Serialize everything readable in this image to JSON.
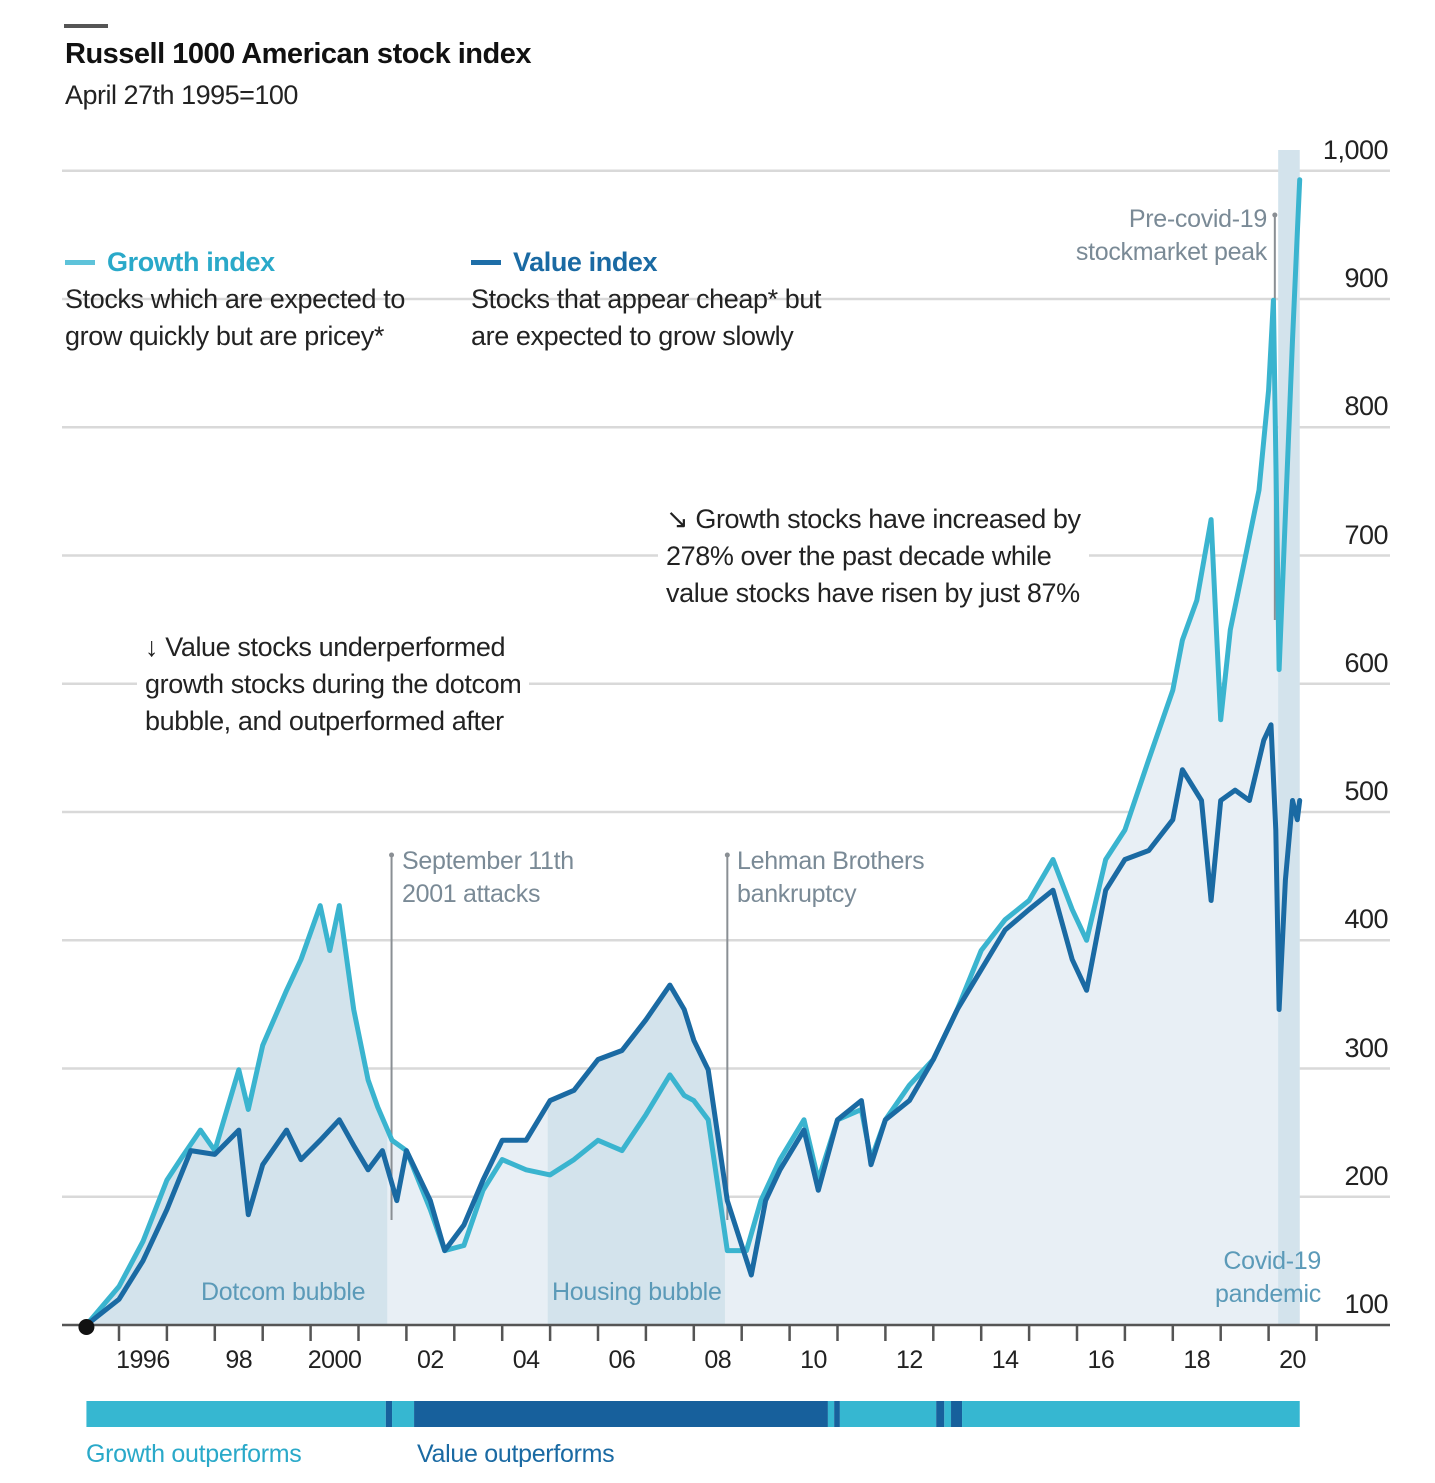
{
  "header": {
    "title": "Russell 1000 American stock index",
    "subtitle": "April 27th 1995=100"
  },
  "legend": {
    "growth": {
      "label": "Growth index",
      "desc_line1": "Stocks which are expected to",
      "desc_line2": "grow quickly but are pricey*"
    },
    "value": {
      "label": "Value index",
      "desc_line1": "Stocks that appear cheap* but",
      "desc_line2": "are expected to grow slowly"
    }
  },
  "annotations": {
    "decade": {
      "arrow": "↘",
      "line1": "Growth stocks have increased by",
      "line2": "278% over the past decade while",
      "line3": "value stocks have risen by just 87%"
    },
    "dotcom": {
      "arrow": "↓",
      "line1": "Value stocks underperformed",
      "line2": "growth stocks during the dotcom",
      "line3": "bubble, and outperformed after"
    },
    "events": [
      {
        "line1": "September 11th",
        "line2": "2001 attacks",
        "x": 2001.69
      },
      {
        "line1": "Lehman Brothers",
        "line2": "bankruptcy",
        "x": 2008.7
      },
      {
        "line1": "Pre-covid-19",
        "line2": "stockmarket peak",
        "x": 2020.13
      }
    ],
    "shaded_periods": [
      {
        "label": "Dotcom bubble",
        "start": 1995.32,
        "end": 2001.6
      },
      {
        "label": "Housing bubble",
        "start": 2004.95,
        "end": 2008.65
      },
      {
        "label_line1": "Covid-19",
        "label_line2": "pandemic",
        "start": 2020.2,
        "end": 2020.65
      }
    ]
  },
  "bottom_bar": {
    "growth_label": "Growth outperforms",
    "value_label": "Value outperforms",
    "segments": [
      {
        "winner": "growth",
        "start": 1995.32,
        "end": 2001.57
      },
      {
        "winner": "value",
        "start": 2001.57,
        "end": 2001.7
      },
      {
        "winner": "growth",
        "start": 2001.7,
        "end": 2002.16
      },
      {
        "winner": "value",
        "start": 2002.16,
        "end": 2010.8
      },
      {
        "winner": "growth",
        "start": 2010.8,
        "end": 2010.93
      },
      {
        "winner": "value",
        "start": 2010.93,
        "end": 2011.05
      },
      {
        "winner": "growth",
        "start": 2011.05,
        "end": 2013.06
      },
      {
        "winner": "value",
        "start": 2013.06,
        "end": 2013.23
      },
      {
        "winner": "growth",
        "start": 2013.23,
        "end": 2013.37
      },
      {
        "winner": "value",
        "start": 2013.37,
        "end": 2013.6
      },
      {
        "winner": "growth",
        "start": 2013.6,
        "end": 2020.65
      }
    ]
  },
  "colors": {
    "growth": "#3ab4cf",
    "value": "#1a6aa3",
    "shade": "#d3e3ec",
    "area": "#e8eff5",
    "grid": "#d9d9d9",
    "event_line": "#8a8f94",
    "bar_growth": "#36b7d1",
    "bar_value": "#17609c"
  },
  "chart_data": {
    "type": "line",
    "title": "Russell 1000 American stock index",
    "subtitle": "April 27th 1995=100",
    "xlabel": "",
    "ylabel": "",
    "xlim": [
      1995.32,
      2020.65
    ],
    "ylim": [
      100,
      1000
    ],
    "yticks": [
      100,
      200,
      300,
      400,
      500,
      600,
      700,
      800,
      900,
      1000
    ],
    "ytick_labels": [
      "100",
      "200",
      "300",
      "400",
      "500",
      "600",
      "700",
      "800",
      "900",
      "1,000"
    ],
    "xticks": [
      1996,
      1998,
      2000,
      2002,
      2004,
      2006,
      2008,
      2010,
      2012,
      2014,
      2016,
      2018,
      2020
    ],
    "xtick_labels": [
      "1996",
      "98",
      "2000",
      "02",
      "04",
      "06",
      "08",
      "10",
      "12",
      "14",
      "16",
      "18",
      "20"
    ],
    "grid": true,
    "legend_position": "top-left",
    "series": [
      {
        "name": "Growth index",
        "x": [
          1995.32,
          1996.0,
          1996.5,
          1997.0,
          1997.3,
          1997.7,
          1998.0,
          1998.5,
          1998.7,
          1999.0,
          1999.5,
          1999.8,
          2000.2,
          2000.4,
          2000.6,
          2000.9,
          2001.2,
          2001.4,
          2001.7,
          2002.0,
          2002.5,
          2002.8,
          2003.2,
          2003.6,
          2004.0,
          2004.5,
          2005.0,
          2005.5,
          2006.0,
          2006.5,
          2007.0,
          2007.5,
          2007.8,
          2008.0,
          2008.3,
          2008.7,
          2009.1,
          2009.4,
          2009.8,
          2010.3,
          2010.6,
          2011.0,
          2011.5,
          2011.7,
          2012.0,
          2012.5,
          2013.0,
          2013.5,
          2014.0,
          2014.5,
          2015.0,
          2015.5,
          2015.9,
          2016.2,
          2016.6,
          2017.0,
          2017.5,
          2018.0,
          2018.2,
          2018.5,
          2018.8,
          2019.0,
          2019.2,
          2019.5,
          2019.8,
          2020.0,
          2020.1,
          2020.22,
          2020.5,
          2020.65
        ],
        "values": [
          100,
          130,
          165,
          213,
          230,
          252,
          236,
          299,
          268,
          318,
          361,
          385,
          427,
          392,
          427,
          346,
          291,
          270,
          244,
          236,
          190,
          158,
          162,
          205,
          229,
          221,
          217,
          229,
          244,
          236,
          264,
          295,
          279,
          275,
          260,
          158,
          158,
          197,
          229,
          260,
          213,
          260,
          268,
          229,
          260,
          287,
          307,
          346,
          392,
          416,
          431,
          463,
          424,
          400,
          463,
          486,
          541,
          595,
          634,
          665,
          728,
          572,
          642,
          696,
          751,
          829,
          899,
          611,
          868,
          993
        ]
      },
      {
        "name": "Value index",
        "x": [
          1995.32,
          1996.0,
          1996.5,
          1997.0,
          1997.5,
          1998.0,
          1998.5,
          1998.7,
          1999.0,
          1999.5,
          1999.8,
          2000.2,
          2000.6,
          2000.9,
          2001.2,
          2001.5,
          2001.8,
          2002.0,
          2002.5,
          2002.8,
          2003.2,
          2003.6,
          2004.0,
          2004.5,
          2005.0,
          2005.5,
          2006.0,
          2006.5,
          2007.0,
          2007.5,
          2007.8,
          2008.0,
          2008.3,
          2008.7,
          2009.2,
          2009.5,
          2009.8,
          2010.3,
          2010.6,
          2011.0,
          2011.5,
          2011.7,
          2012.0,
          2012.5,
          2013.0,
          2013.5,
          2014.0,
          2014.5,
          2015.0,
          2015.5,
          2015.9,
          2016.2,
          2016.6,
          2017.0,
          2017.5,
          2018.0,
          2018.2,
          2018.6,
          2018.8,
          2019.0,
          2019.3,
          2019.6,
          2019.9,
          2020.05,
          2020.15,
          2020.22,
          2020.35,
          2020.5,
          2020.6,
          2020.65
        ],
        "values": [
          100,
          120,
          150,
          190,
          236,
          233,
          252,
          186,
          225,
          252,
          229,
          244,
          260,
          240,
          221,
          236,
          197,
          236,
          197,
          158,
          178,
          213,
          244,
          244,
          275,
          283,
          307,
          314,
          338,
          365,
          346,
          322,
          299,
          197,
          139,
          197,
          221,
          252,
          205,
          260,
          275,
          225,
          260,
          275,
          307,
          346,
          377,
          408,
          424,
          439,
          385,
          361,
          439,
          463,
          470,
          494,
          533,
          509,
          431,
          509,
          517,
          509,
          556,
          568,
          486,
          346,
          447,
          509,
          494,
          509
        ]
      }
    ]
  }
}
